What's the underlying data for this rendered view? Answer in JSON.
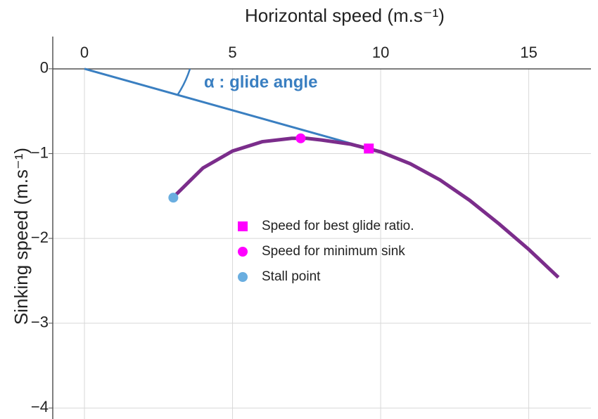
{
  "chart_data": {
    "type": "line",
    "title": "Horizontal speed (m.s⁻¹)",
    "y_label": "Sinking speed (m.s⁻¹)",
    "annotation": "α : glide angle",
    "xlim": [
      -1.07,
      17.1
    ],
    "ylim": [
      -4.13,
      0.38
    ],
    "xticks": [
      0,
      5,
      10,
      15
    ],
    "yticks": [
      0,
      {
        "value": -1,
        "label": "−1"
      },
      {
        "value": -2,
        "label": "−2"
      },
      {
        "value": -3,
        "label": "−3"
      },
      {
        "value": -4,
        "label": "−4"
      }
    ],
    "grid": true,
    "series": [
      {
        "color": "#3a7fc1",
        "x": [
          0,
          9.6
        ],
        "values": [
          0,
          -0.94
        ]
      },
      {
        "color": "#7b2d8b",
        "x": [
          3.1,
          4,
          5,
          6,
          7,
          7.5,
          8,
          9,
          10,
          11,
          12,
          13,
          14,
          15,
          16
        ],
        "values": [
          -1.48,
          -1.17,
          -0.97,
          -0.86,
          -0.82,
          -0.82,
          -0.84,
          -0.89,
          -0.98,
          -1.12,
          -1.31,
          -1.55,
          -1.83,
          -2.13,
          -2.46
        ]
      },
      {
        "name": "Speed for best glide ratio.",
        "color": "#ff00ff",
        "marker": "square",
        "x": [
          9.6
        ],
        "values": [
          -0.94
        ]
      },
      {
        "name": "Speed for minimum sink",
        "color": "#ff00ff",
        "marker": "circle",
        "x": [
          7.3
        ],
        "values": [
          -0.82
        ]
      },
      {
        "name": "Stall point",
        "color": "#6aaee0",
        "marker": "circle",
        "x": [
          3.0
        ],
        "values": [
          -1.52
        ]
      }
    ]
  }
}
